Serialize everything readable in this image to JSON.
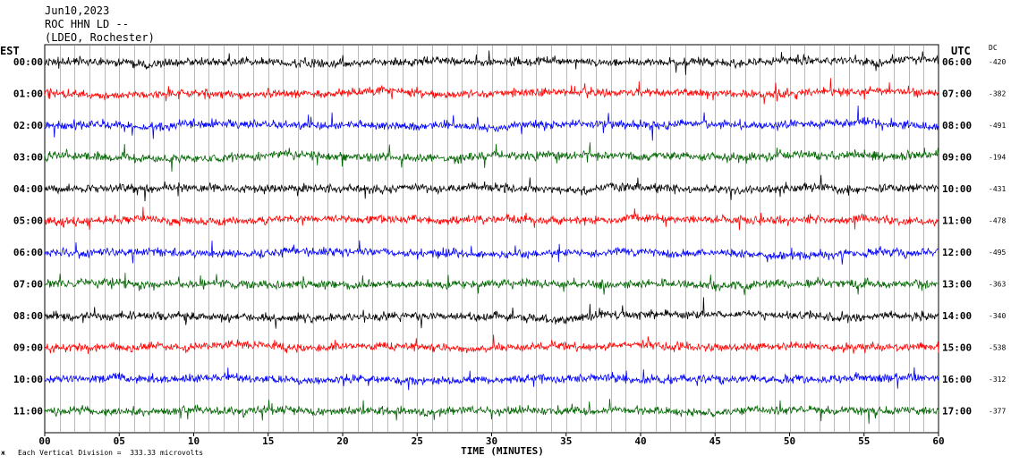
{
  "header": {
    "date": "Jun10,2023",
    "station": "ROC HHN LD --",
    "network": "(LDEO, Rochester)"
  },
  "left_axis_title": "EST",
  "right_axis_title": "UTC",
  "dc_title": "DC",
  "footer": {
    "scale_note": "Each Vertical Division =  333.33 microvolts",
    "corner_mark": "ж"
  },
  "chart_data": {
    "type": "line",
    "title": "",
    "xlabel": "TIME (MINUTES)",
    "ylabel": "",
    "xlim": [
      0,
      60
    ],
    "x_ticks": [
      "00",
      "05",
      "10",
      "15",
      "20",
      "25",
      "30",
      "35",
      "40",
      "45",
      "50",
      "55",
      "60"
    ],
    "grid_minutes_every": 1,
    "colors": [
      "#000000",
      "#ff0000",
      "#0000ff",
      "#006400"
    ],
    "rows": [
      {
        "est": "00:00",
        "utc": "06:00",
        "dc": "-420",
        "color": "#000000"
      },
      {
        "est": "01:00",
        "utc": "07:00",
        "dc": "-382",
        "color": "#ff0000"
      },
      {
        "est": "02:00",
        "utc": "08:00",
        "dc": "-491",
        "color": "#0000ff"
      },
      {
        "est": "03:00",
        "utc": "09:00",
        "dc": "-194",
        "color": "#006400"
      },
      {
        "est": "04:00",
        "utc": "10:00",
        "dc": "-431",
        "color": "#000000"
      },
      {
        "est": "05:00",
        "utc": "11:00",
        "dc": "-478",
        "color": "#ff0000"
      },
      {
        "est": "06:00",
        "utc": "12:00",
        "dc": "-495",
        "color": "#0000ff"
      },
      {
        "est": "07:00",
        "utc": "13:00",
        "dc": "-363",
        "color": "#006400"
      },
      {
        "est": "08:00",
        "utc": "14:00",
        "dc": "-340",
        "color": "#000000"
      },
      {
        "est": "09:00",
        "utc": "15:00",
        "dc": "-538",
        "color": "#ff0000"
      },
      {
        "est": "10:00",
        "utc": "16:00",
        "dc": "-312",
        "color": "#0000ff"
      },
      {
        "est": "11:00",
        "utc": "17:00",
        "dc": "-377",
        "color": "#006400"
      }
    ]
  }
}
